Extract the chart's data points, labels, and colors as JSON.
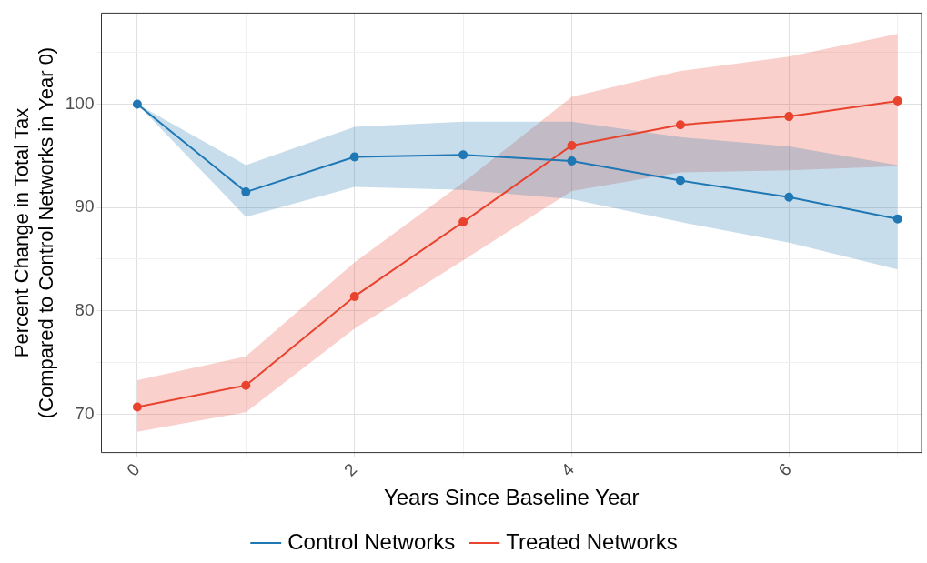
{
  "chart_data": {
    "type": "line",
    "xlabel": "Years Since Baseline Year",
    "ylabel": "Percent Change in Total Tax\n(Compared to Control Networks in Year 0)",
    "x": [
      0,
      1,
      2,
      3,
      4,
      5,
      6,
      7
    ],
    "series": [
      {
        "name": "Control Networks",
        "color": "#1f78b4",
        "values": [
          100,
          91.5,
          94.9,
          95.1,
          94.5,
          92.6,
          91.0,
          88.9
        ],
        "lower": [
          100,
          89.1,
          92.0,
          91.7,
          90.8,
          88.6,
          86.6,
          84.0
        ],
        "upper": [
          100,
          94.1,
          97.8,
          98.3,
          98.3,
          96.8,
          95.9,
          94.1
        ]
      },
      {
        "name": "Treated Networks",
        "color": "#e8432e",
        "values": [
          70.7,
          72.8,
          81.4,
          88.6,
          96.0,
          98.0,
          98.8,
          100.3
        ],
        "lower": [
          68.3,
          70.2,
          78.3,
          84.9,
          91.6,
          93.4,
          93.6,
          94.0
        ],
        "upper": [
          73.3,
          75.6,
          84.7,
          92.4,
          100.7,
          103.2,
          104.6,
          106.8
        ]
      }
    ],
    "xlim": [
      -0.33,
      7.22
    ],
    "xticks": [
      0,
      {
        "value": 1,
        "label": null
      },
      2,
      {
        "value": 3,
        "label": null
      },
      4,
      {
        "value": 5,
        "label": null
      },
      6,
      {
        "value": 7,
        "label": null
      }
    ],
    "ylim": [
      66.3,
      108.8
    ],
    "yticks": [
      70,
      {
        "value": 75,
        "label": null
      },
      80,
      {
        "value": 85,
        "label": null
      },
      90,
      {
        "value": 95,
        "label": null
      },
      100,
      {
        "value": 105,
        "label": null
      }
    ],
    "grid": true,
    "legend": "bottom",
    "marker": "circle",
    "line_style": "solid"
  }
}
